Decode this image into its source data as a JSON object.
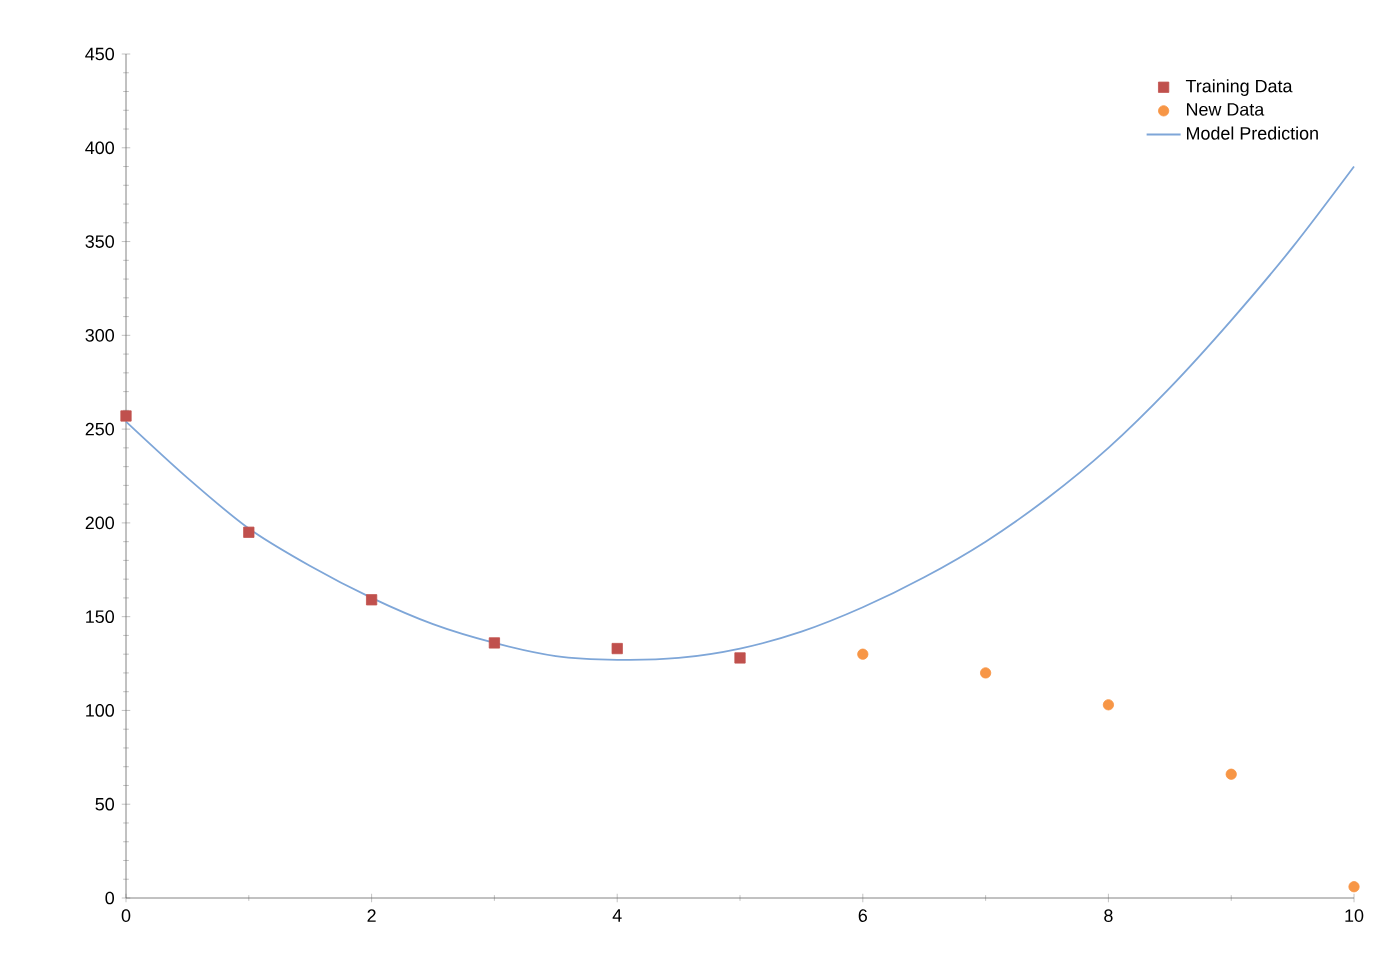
{
  "chart_data": {
    "type": "scatter",
    "xlim": [
      0,
      10
    ],
    "ylim": [
      0,
      450
    ],
    "xticks": [
      0,
      2,
      4,
      6,
      8,
      10
    ],
    "yticks": [
      0,
      50,
      100,
      150,
      200,
      250,
      300,
      350,
      400,
      450
    ],
    "grid": false,
    "legend": "top right",
    "series": [
      {
        "name": "Training Data",
        "marker": "square",
        "color": "#c0504d",
        "x": [
          0,
          1,
          2,
          3,
          4,
          5
        ],
        "values": [
          257,
          195,
          159,
          136,
          133,
          128
        ]
      },
      {
        "name": "New Data",
        "marker": "circle",
        "color": "#f79646",
        "x": [
          6,
          7,
          8,
          9,
          10
        ],
        "values": [
          130,
          120,
          103,
          66,
          6
        ]
      },
      {
        "name": "Model Prediction",
        "type": "line",
        "marker": "none",
        "line_style": "solid",
        "color": "#7ea6d8",
        "x": [
          0,
          0.5,
          1,
          1.5,
          2,
          2.5,
          3,
          3.5,
          4,
          4.5,
          5,
          5.5,
          6,
          6.5,
          7,
          7.5,
          8,
          8.5,
          9,
          9.5,
          10
        ],
        "values": [
          254,
          224,
          197,
          177,
          160,
          146,
          136,
          129,
          127,
          128,
          133,
          142,
          155,
          171,
          190,
          213,
          240,
          272,
          308,
          347,
          390
        ]
      }
    ]
  }
}
